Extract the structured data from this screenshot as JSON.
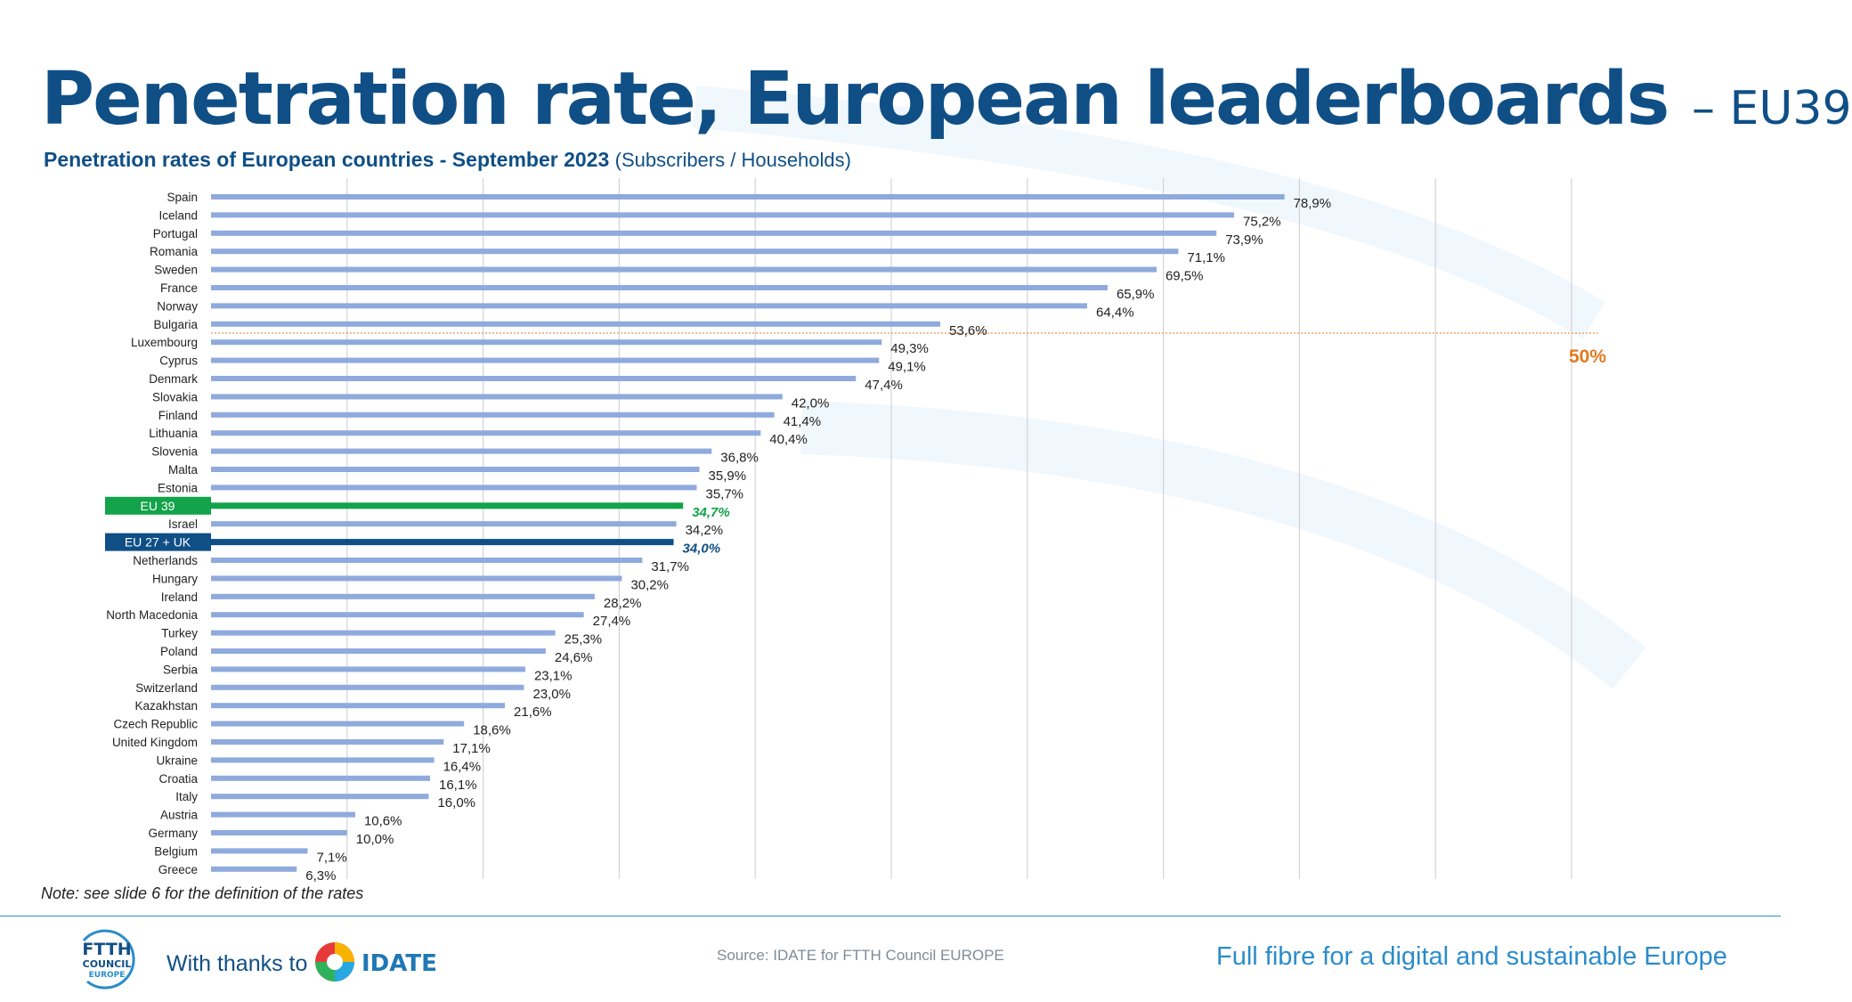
{
  "slide": {
    "title": "Penetration rate, European leaderboards",
    "title_suffix": "– EU39",
    "subtitle": "Penetration rates of European countries - September 2023",
    "subtitle_note": "(Subscribers / Households)",
    "note": "Note: see slide 6 for the definition of the rates",
    "footer": {
      "thanks": "With thanks to",
      "source": "Source: IDATE for FTTH Council EUROPE",
      "tagline": "Full fibre for a digital and sustainable Europe",
      "ftth_logo_text": [
        "FTTH",
        "COUNCIL",
        "EUROPE"
      ],
      "idate_logo_text": "IDATE"
    }
  },
  "colors": {
    "title": "#0f4f86",
    "bar": "#8faadc",
    "eu39": "#13a34a",
    "eu27uk": "#0f4f86",
    "threshold": "#e07b1f",
    "grid": "#d4d4d4"
  },
  "chart_data": {
    "type": "bar",
    "orientation": "horizontal",
    "title": "Penetration rates of European countries - September 2023",
    "value_suffix": "%",
    "xlim": [
      0,
      100
    ],
    "grid": true,
    "threshold": {
      "value": 50,
      "label": "50%"
    },
    "categories": [
      "Spain",
      "Iceland",
      "Portugal",
      "Romania",
      "Sweden",
      "France",
      "Norway",
      "Bulgaria",
      "Luxembourg",
      "Cyprus",
      "Denmark",
      "Slovakia",
      "Finland",
      "Lithuania",
      "Slovenia",
      "Malta",
      "Estonia",
      "EU 39",
      "Israel",
      "EU 27 + UK",
      "Netherlands",
      "Hungary",
      "Ireland",
      "North Macedonia",
      "Turkey",
      "Poland",
      "Serbia",
      "Switzerland",
      "Kazakhstan",
      "Czech Republic",
      "United Kingdom",
      "Ukraine",
      "Croatia",
      "Italy",
      "Austria",
      "Germany",
      "Belgium",
      "Greece"
    ],
    "values": [
      78.9,
      75.2,
      73.9,
      71.1,
      69.5,
      65.9,
      64.4,
      53.6,
      49.3,
      49.1,
      47.4,
      42.0,
      41.4,
      40.4,
      36.8,
      35.9,
      35.7,
      34.7,
      34.2,
      34.0,
      31.7,
      30.2,
      28.2,
      27.4,
      25.3,
      24.6,
      23.1,
      23.0,
      21.6,
      18.6,
      17.1,
      16.4,
      16.1,
      16.0,
      10.6,
      10.0,
      7.1,
      6.3
    ],
    "value_labels": [
      "78,9%",
      "75,2%",
      "73,9%",
      "71,1%",
      "69,5%",
      "65,9%",
      "64,4%",
      "53,6%",
      "49,3%",
      "49,1%",
      "47,4%",
      "42,0%",
      "41,4%",
      "40,4%",
      "36,8%",
      "35,9%",
      "35,7%",
      "34,7%",
      "34,2%",
      "34,0%",
      "31,7%",
      "30,2%",
      "28,2%",
      "27,4%",
      "25,3%",
      "24,6%",
      "23,1%",
      "23,0%",
      "21,6%",
      "18,6%",
      "17,1%",
      "16,4%",
      "16,1%",
      "16,0%",
      "10,6%",
      "10,0%",
      "7,1%",
      "6,3%"
    ],
    "highlights": {
      "EU 39": "eu39",
      "EU 27 + UK": "eu27uk"
    }
  }
}
